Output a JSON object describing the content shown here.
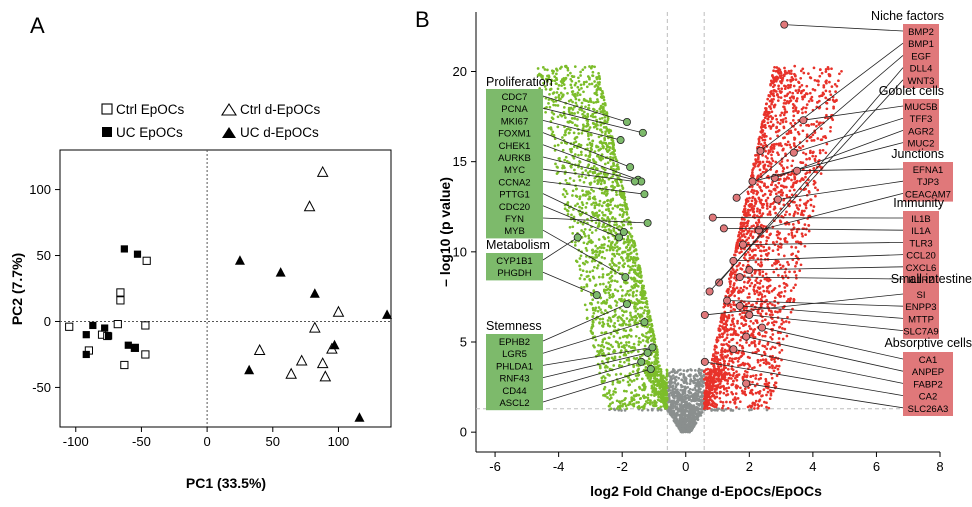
{
  "colors": {
    "up": "#e8322a",
    "down": "#7cbd2a",
    "ns": "#8a8f8e",
    "up_box": "#e0787a",
    "down_box": "#7dba6b",
    "guide": "#bdbdbd"
  },
  "panel_a": {
    "label": "A",
    "legend": [
      "Ctrl EpOCs",
      "UC EpOCs",
      "Ctrl d-EpOCs",
      "UC d-EpOCs"
    ]
  },
  "panel_b": {
    "label": "B"
  },
  "chart_data": [
    {
      "type": "scatter",
      "xlabel": "PC1 (33.5%)",
      "ylabel": "PC2 (7.7%)",
      "xlim": [
        -112,
        140
      ],
      "ylim": [
        -80,
        130
      ],
      "xticks": [
        -100,
        -50,
        0,
        50,
        100
      ],
      "yticks": [
        -50,
        0,
        50,
        100
      ],
      "reference_lines": {
        "x": 0,
        "y": 0
      },
      "series": [
        {
          "name": "Ctrl EpOCs",
          "marker": "open-square",
          "points": [
            [
              -105,
              -4
            ],
            [
              -90,
              -22
            ],
            [
              -80,
              -10
            ],
            [
              -76,
              -11
            ],
            [
              -68,
              -2
            ],
            [
              -66,
              16
            ],
            [
              -66,
              22
            ],
            [
              -63,
              -33
            ],
            [
              -55,
              -20
            ],
            [
              -47,
              -3
            ],
            [
              -47,
              -25
            ],
            [
              -46,
              46
            ]
          ]
        },
        {
          "name": "UC EpOCs",
          "marker": "filled-square",
          "points": [
            [
              -92,
              -10
            ],
            [
              -92,
              -25
            ],
            [
              -87,
              -3
            ],
            [
              -78,
              -5
            ],
            [
              -75,
              -11
            ],
            [
              -63,
              55
            ],
            [
              -60,
              -18
            ],
            [
              -55,
              -20
            ],
            [
              -53,
              51
            ]
          ]
        },
        {
          "name": "Ctrl d-EpOCs",
          "marker": "open-triangle",
          "points": [
            [
              40,
              -22
            ],
            [
              64,
              -40
            ],
            [
              72,
              -30
            ],
            [
              78,
              87
            ],
            [
              82,
              -5
            ],
            [
              88,
              113
            ],
            [
              88,
              -32
            ],
            [
              90,
              -42
            ],
            [
              95,
              -21
            ],
            [
              100,
              7
            ]
          ]
        },
        {
          "name": "UC d-EpOCs",
          "marker": "filled-triangle",
          "points": [
            [
              25,
              46
            ],
            [
              32,
              -37
            ],
            [
              56,
              37
            ],
            [
              82,
              21
            ],
            [
              97,
              -18
            ],
            [
              116,
              -73
            ],
            [
              137,
              5
            ]
          ]
        }
      ]
    },
    {
      "type": "scatter",
      "subtype": "volcano",
      "xlabel": "log2 Fold Change d-EpOCs/EpOCs",
      "ylabel": "– log10 (p value)",
      "xlim": [
        -6.6,
        8.0
      ],
      "ylim": [
        -1.1,
        23.3
      ],
      "xticks": [
        -6,
        -4,
        -2,
        0,
        2,
        4,
        6,
        8
      ],
      "yticks": [
        0,
        5,
        10,
        15,
        20
      ],
      "thresholds": {
        "fold_change": [
          -0.58,
          0.58
        ],
        "p_value": 1.3
      },
      "groups": [
        {
          "name": "Niche factors",
          "direction": "up",
          "genes": [
            "BMP2",
            "BMP1",
            "EGF",
            "DLL4",
            "WNT3"
          ],
          "points": [
            [
              3.1,
              22.6
            ],
            [
              2.35,
              15.6
            ],
            [
              1.6,
              13.0
            ],
            [
              1.05,
              8.3
            ],
            [
              0.75,
              7.8
            ]
          ]
        },
        {
          "name": "Goblet cells",
          "direction": "up",
          "genes": [
            "MUC5B",
            "TFF3",
            "AGR2",
            "MUC2"
          ],
          "points": [
            [
              3.7,
              17.3
            ],
            [
              3.4,
              15.5
            ],
            [
              2.8,
              14.1
            ],
            [
              2.1,
              13.9
            ]
          ]
        },
        {
          "name": "Junctions",
          "direction": "up",
          "genes": [
            "EFNA1",
            "TJP3",
            "CEACAM7"
          ],
          "points": [
            [
              3.5,
              14.5
            ],
            [
              2.9,
              12.9
            ],
            [
              2.3,
              11.2
            ]
          ]
        },
        {
          "name": "Immunity",
          "direction": "up",
          "genes": [
            "IL1B",
            "IL1A",
            "TLR3",
            "CCL20",
            "CXCL6",
            "IL1R2"
          ],
          "points": [
            [
              0.85,
              11.9
            ],
            [
              1.2,
              11.3
            ],
            [
              1.8,
              10.4
            ],
            [
              1.5,
              9.5
            ],
            [
              2.0,
              9.0
            ],
            [
              1.7,
              8.6
            ]
          ]
        },
        {
          "name": "Small intestine",
          "direction": "up",
          "genes": [
            "SI",
            "ENPP3",
            "MTTP",
            "SLC7A9"
          ],
          "points": [
            [
              0.6,
              6.5
            ],
            [
              1.3,
              7.3
            ],
            [
              1.7,
              7.0
            ],
            [
              2.0,
              6.5
            ]
          ]
        },
        {
          "name": "Absorptive cells",
          "direction": "up",
          "genes": [
            "CA1",
            "ANPEP",
            "FABP2",
            "CA2",
            "SLC26A3"
          ],
          "points": [
            [
              2.4,
              5.8
            ],
            [
              1.9,
              5.3
            ],
            [
              1.5,
              4.6
            ],
            [
              0.6,
              3.9
            ],
            [
              1.9,
              2.7
            ]
          ]
        },
        {
          "name": "Proliferation",
          "direction": "down",
          "genes": [
            "CDC7",
            "PCNA",
            "MKI67",
            "FOXM1",
            "CHEK1",
            "AURKB",
            "MYC",
            "CCNA2",
            "PTTG1",
            "CDC20",
            "FYN",
            "MYB"
          ],
          "points": [
            [
              -1.85,
              17.2
            ],
            [
              -1.35,
              16.6
            ],
            [
              -2.05,
              16.2
            ],
            [
              -1.75,
              14.7
            ],
            [
              -1.5,
              14.0
            ],
            [
              -1.4,
              13.9
            ],
            [
              -1.6,
              13.9
            ],
            [
              -1.3,
              13.2
            ],
            [
              -1.95,
              11.1
            ],
            [
              -2.1,
              10.8
            ],
            [
              -1.2,
              11.6
            ],
            [
              -1.9,
              8.6
            ]
          ]
        },
        {
          "name": "Metabolism",
          "direction": "down",
          "genes": [
            "CYP1B1",
            "PHGDH"
          ],
          "points": [
            [
              -3.4,
              10.8
            ],
            [
              -2.8,
              7.6
            ]
          ]
        },
        {
          "name": "Stemness",
          "direction": "down",
          "genes": [
            "EPHB2",
            "LGR5",
            "PHLDA1",
            "RNF43",
            "CD44",
            "ASCL2"
          ],
          "points": [
            [
              -1.85,
              7.1
            ],
            [
              -1.3,
              6.1
            ],
            [
              -1.05,
              4.7
            ],
            [
              -1.2,
              4.4
            ],
            [
              -1.4,
              3.9
            ],
            [
              -1.1,
              3.5
            ]
          ]
        }
      ]
    }
  ]
}
